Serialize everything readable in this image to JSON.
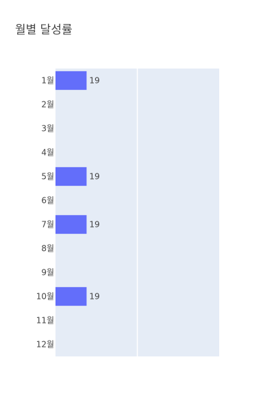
{
  "chart_data": {
    "type": "bar",
    "orientation": "horizontal",
    "title": "월별 달성률",
    "categories": [
      "1월",
      "2월",
      "3월",
      "4월",
      "5월",
      "6월",
      "7월",
      "8월",
      "9월",
      "10월",
      "11월",
      "12월"
    ],
    "values": [
      19,
      null,
      null,
      null,
      19,
      null,
      19,
      null,
      null,
      19,
      null,
      null
    ],
    "xlim": [
      0,
      100
    ],
    "grid": true,
    "colors": {
      "bar": "#636efa",
      "plot_background": "#e5ecf6",
      "grid": "#ffffff",
      "text": "#444444"
    }
  }
}
